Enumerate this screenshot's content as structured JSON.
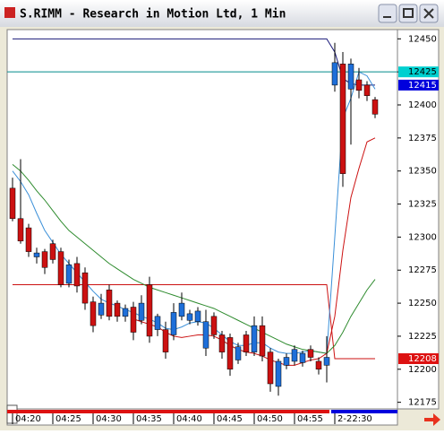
{
  "chart_data": {
    "type": "candlestick",
    "title": "S.RIMM - Research in Motion Ltd, 1 Min",
    "categories": [
      "04:20",
      null,
      null,
      null,
      null,
      "04:25",
      null,
      null,
      null,
      null,
      "04:30",
      null,
      null,
      null,
      null,
      "04:35",
      null,
      null,
      null,
      null,
      "04:40",
      null,
      null,
      null,
      null,
      "04:45",
      null,
      null,
      null,
      null,
      "04:50",
      null,
      null,
      null,
      null,
      "04:55",
      null,
      null,
      null,
      null,
      "2-22:30",
      null,
      null,
      null,
      null,
      null
    ],
    "open": [
      12337,
      12314,
      12307,
      12285,
      12289,
      12295,
      12289,
      12265,
      12280,
      12273,
      12251,
      12241,
      12260,
      12250,
      12240,
      12247,
      12237,
      12264,
      12230,
      12230,
      12226,
      12240,
      12237,
      12236,
      12216,
      12240,
      12226,
      12224,
      12207,
      12226,
      12213,
      12233,
      12213,
      12187,
      12203,
      12206,
      12205,
      12215,
      12206,
      12203,
      12415,
      12431,
      12412,
      12419,
      12415,
      12404
    ],
    "high": [
      12345,
      12359,
      12310,
      12292,
      12291,
      12298,
      12292,
      12283,
      12285,
      12277,
      12255,
      12257,
      12264,
      12252,
      12249,
      12251,
      12256,
      12270,
      12242,
      12236,
      12250,
      12258,
      12245,
      12247,
      12245,
      12243,
      12229,
      12227,
      12220,
      12229,
      12240,
      12240,
      12216,
      12208,
      12212,
      12218,
      12214,
      12218,
      12209,
      12225,
      12447,
      12440,
      12435,
      12428,
      12418,
      12406
    ],
    "low": [
      12312,
      12295,
      12285,
      12280,
      12272,
      12280,
      12262,
      12262,
      12258,
      12245,
      12228,
      12238,
      12237,
      12236,
      12236,
      12222,
      12234,
      12220,
      12225,
      12208,
      12222,
      12237,
      12234,
      12233,
      12210,
      12223,
      12208,
      12195,
      12204,
      12210,
      12210,
      12206,
      12183,
      12180,
      12200,
      12203,
      12202,
      12206,
      12196,
      12190,
      12410,
      12338,
      12370,
      12405,
      12403,
      12390
    ],
    "close": [
      12314,
      12297,
      12289,
      12288,
      12277,
      12283,
      12264,
      12279,
      12263,
      12250,
      12233,
      12250,
      12240,
      12240,
      12246,
      12228,
      12250,
      12225,
      12240,
      12213,
      12243,
      12250,
      12242,
      12244,
      12236,
      12226,
      12213,
      12200,
      12217,
      12213,
      12233,
      12210,
      12189,
      12206,
      12209,
      12215,
      12212,
      12209,
      12200,
      12209,
      12432,
      12348,
      12431,
      12411,
      12407,
      12393
    ],
    "up_color": "#1e6fd9",
    "down_color": "#cc1111",
    "series": [
      {
        "color": "#1a1a7a",
        "values": [
          12450,
          12450,
          12450,
          12450,
          12450,
          12450,
          12450,
          12450,
          12450,
          12450,
          12450,
          12450,
          12450,
          12450,
          12450,
          12450,
          12450,
          12450,
          12450,
          12450,
          12450,
          12450,
          12450,
          12450,
          12450,
          12450,
          12450,
          12450,
          12450,
          12450,
          12450,
          12450,
          12450,
          12450,
          12450,
          12450,
          12450,
          12450,
          12450,
          12450,
          12440,
          12420,
          12416,
          12415,
          12415,
          12415
        ]
      },
      {
        "color": "#cc1111",
        "values": [
          12264,
          12264,
          12264,
          12264,
          12264,
          12264,
          12264,
          12264,
          12264,
          12264,
          12264,
          12264,
          12264,
          12264,
          12264,
          12264,
          12264,
          12264,
          12264,
          12264,
          12264,
          12264,
          12264,
          12264,
          12264,
          12264,
          12264,
          12264,
          12264,
          12264,
          12264,
          12264,
          12264,
          12264,
          12264,
          12264,
          12264,
          12264,
          12264,
          12264,
          12208,
          12208,
          12208,
          12208,
          12208,
          12208
        ]
      },
      {
        "color": "#3a8fd8",
        "values": [
          12350,
          12342,
          12332,
          12318,
          12305,
          12296,
          12287,
          12280,
          12273,
          12266,
          12259,
          12253,
          12250,
          12248,
          12245,
          12243,
          12240,
          12238,
          12235,
          12231,
          12230,
          12232,
          12235,
          12236,
          12235,
          12231,
          12226,
          12221,
          12218,
          12218,
          12220,
          12220,
          12216,
          12213,
          12212,
          12212,
          12213,
          12214,
          12213,
          12212,
          12300,
          12390,
          12405,
          12425,
          12422,
          12412
        ]
      },
      {
        "color": "#2e8b2e",
        "values": [
          12355,
          12350,
          12343,
          12335,
          12328,
          12320,
          12312,
          12305,
          12300,
          12295,
          12290,
          12285,
          12280,
          12276,
          12272,
          12268,
          12265,
          12262,
          12260,
          12258,
          12256,
          12254,
          12252,
          12250,
          12248,
          12246,
          12243,
          12240,
          12237,
          12234,
          12231,
          12228,
          12225,
          12222,
          12219,
          12217,
          12215,
          12214,
          12213,
          12212,
          12218,
          12228,
          12240,
          12250,
          12260,
          12268
        ]
      },
      {
        "color": "#cc1111",
        "values": [
          null,
          null,
          null,
          null,
          null,
          null,
          null,
          null,
          null,
          null,
          null,
          null,
          null,
          null,
          null,
          12238,
          12236,
          12234,
          12232,
          12228,
          12225,
          12224,
          12225,
          12226,
          12226,
          12225,
          12222,
          12218,
          12215,
          12213,
          12212,
          12210,
          12207,
          12205,
          12203,
          12203,
          12205,
          12207,
          12208,
          12212,
          12240,
          12290,
          12330,
          12352,
          12372,
          12375
        ]
      }
    ],
    "hlines": [
      {
        "value": 12425,
        "color": "#008b8b"
      }
    ],
    "price_markers": [
      {
        "value": 12425,
        "bg": "#00d0d0",
        "fg": "#000000"
      },
      {
        "value": 12415,
        "bg": "#0000dd",
        "fg": "#ffffff"
      },
      {
        "value": 12208,
        "bg": "#dd1111",
        "fg": "#ffffff"
      }
    ],
    "ylim": [
      12170,
      12457
    ],
    "yticks": [
      12175,
      12200,
      12225,
      12250,
      12275,
      12300,
      12325,
      12350,
      12375,
      12400,
      12425,
      12450
    ]
  }
}
